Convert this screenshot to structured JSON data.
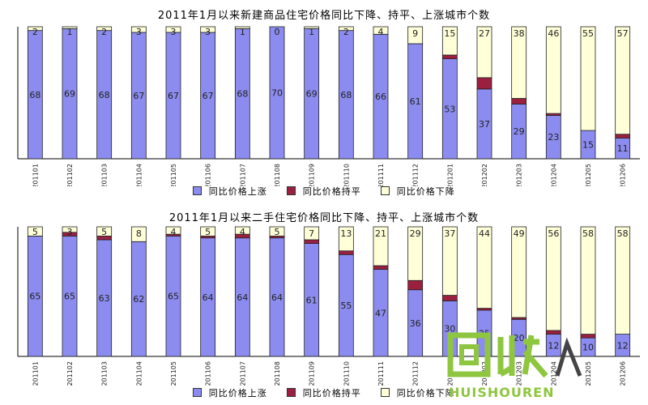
{
  "chart_data": [
    {
      "type": "bar",
      "stacked": true,
      "title": "2011年1月以来新建商品住宅价格同比下降、持平、上涨城市个数",
      "categories": [
        "201101",
        "201102",
        "201103",
        "201104",
        "201105",
        "201106",
        "201107",
        "201108",
        "201109",
        "201110",
        "201111",
        "201112",
        "201201",
        "201202",
        "201203",
        "201204",
        "201205",
        "201206"
      ],
      "series": [
        {
          "name": "同比价格上涨",
          "color": "#8c8cf0",
          "values": [
            68,
            69,
            68,
            67,
            67,
            67,
            68,
            70,
            69,
            68,
            66,
            61,
            53,
            37,
            29,
            23,
            15,
            11
          ]
        },
        {
          "name": "同比价格持平",
          "color": "#9b2040",
          "values": [
            0,
            0,
            0,
            0,
            0,
            0,
            0,
            0,
            0,
            0,
            0,
            0,
            2,
            6,
            3,
            1,
            0,
            2
          ]
        },
        {
          "name": "同比价格下降",
          "color": "#ffffd8",
          "values": [
            2,
            1,
            2,
            3,
            3,
            3,
            1,
            0,
            1,
            2,
            4,
            9,
            15,
            27,
            38,
            46,
            55,
            57
          ]
        }
      ],
      "ylim": [
        0,
        70
      ],
      "grid": false,
      "legend": "bottom"
    },
    {
      "type": "bar",
      "stacked": true,
      "title": "2011年1月以来二手住宅价格同比下降、持平、上涨城市个数",
      "categories": [
        "201101",
        "201102",
        "201103",
        "201104",
        "201105",
        "201106",
        "201107",
        "201108",
        "201109",
        "201110",
        "201111",
        "201112",
        "201201",
        "201202",
        "201203",
        "201204",
        "201205",
        "201206"
      ],
      "series": [
        {
          "name": "同比价格上涨",
          "color": "#8c8cf0",
          "values": [
            65,
            65,
            63,
            62,
            65,
            64,
            64,
            64,
            61,
            55,
            47,
            36,
            30,
            25,
            20,
            12,
            10,
            12
          ]
        },
        {
          "name": "同比价格持平",
          "color": "#9b2040",
          "values": [
            0,
            2,
            2,
            0,
            1,
            1,
            2,
            1,
            2,
            2,
            2,
            5,
            3,
            1,
            1,
            2,
            2,
            0
          ]
        },
        {
          "name": "同比价格下降",
          "color": "#ffffd8",
          "values": [
            5,
            3,
            5,
            8,
            4,
            5,
            4,
            5,
            7,
            13,
            21,
            29,
            37,
            44,
            49,
            56,
            58,
            58
          ]
        }
      ],
      "ylim": [
        0,
        70
      ],
      "grid": false,
      "legend": "bottom"
    }
  ],
  "watermark": {
    "text": "HUISHOUREN",
    "logo": "回收人 logo",
    "color": "#8ec63f"
  }
}
